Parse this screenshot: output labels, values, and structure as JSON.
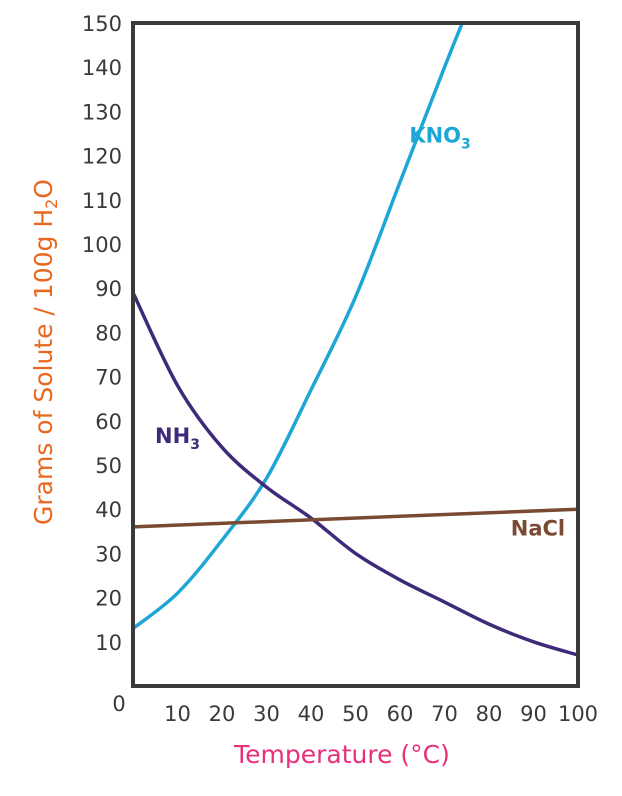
{
  "chart_data": {
    "type": "line",
    "xlabel": "Temperature (°C)",
    "ylabel_main": "Grams of Solute / 100g H",
    "ylabel_sub": "2",
    "ylabel_tail": "O",
    "origin_label": "0",
    "xlim": [
      0,
      100
    ],
    "ylim": [
      0,
      150
    ],
    "x_ticks": [
      "10",
      "20",
      "30",
      "40",
      "50",
      "60",
      "70",
      "80",
      "90",
      "100"
    ],
    "y_ticks": [
      "10",
      "20",
      "30",
      "40",
      "50",
      "60",
      "70",
      "80",
      "90",
      "100",
      "110",
      "120",
      "130",
      "140",
      "150"
    ],
    "grid": false,
    "colors": {
      "kno3": "#1ea6d6",
      "nh3": "#3f2a7a",
      "nacl": "#7b4a32",
      "ylabel": "#e8681f",
      "xlabel": "#e8307a",
      "axes": "#3a3a3a"
    },
    "series": [
      {
        "name": "KNO3",
        "label_main": "KNO",
        "label_sub": "3",
        "color_key": "kno3",
        "x": [
          0,
          10,
          20,
          30,
          40,
          50,
          60,
          70,
          74
        ],
        "y": [
          13,
          21,
          33,
          47,
          67,
          88,
          114,
          140,
          150
        ]
      },
      {
        "name": "NH3",
        "label_main": "NH",
        "label_sub": "3",
        "color_key": "nh3",
        "x": [
          0,
          10,
          20,
          30,
          40,
          50,
          60,
          70,
          80,
          90,
          100
        ],
        "y": [
          89,
          68,
          54,
          45,
          38,
          30,
          24,
          19,
          14,
          10,
          7
        ]
      },
      {
        "name": "NaCl",
        "label_main": "NaCl",
        "label_sub": "",
        "color_key": "nacl",
        "x": [
          0,
          100
        ],
        "y": [
          36,
          40
        ]
      }
    ]
  }
}
